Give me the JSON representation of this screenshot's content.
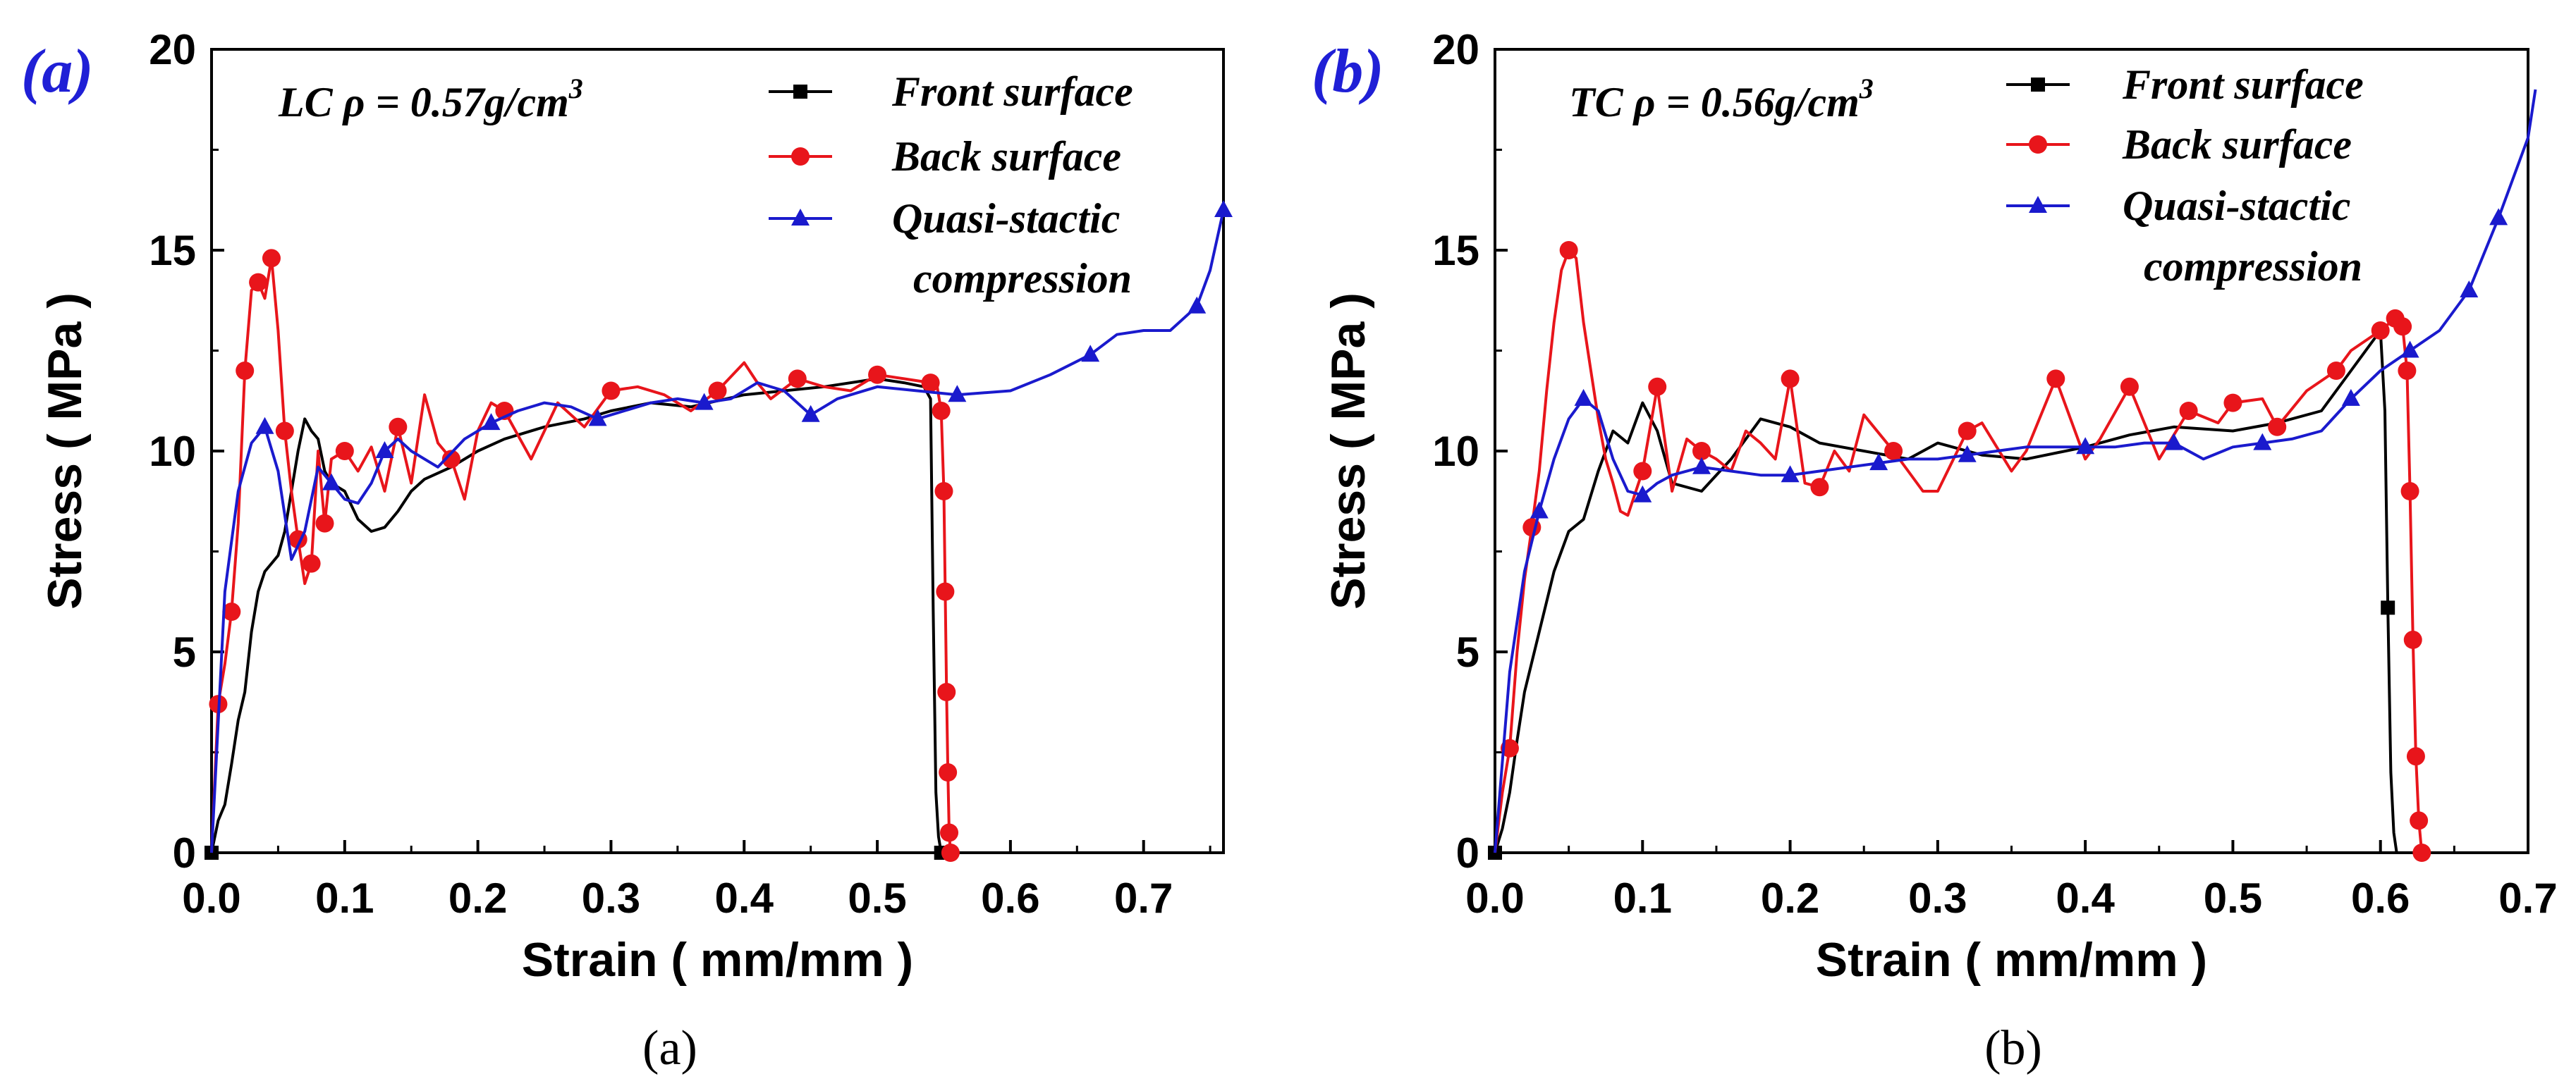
{
  "chart_data": [
    {
      "type": "line",
      "panel_letter": "(a)",
      "caption": "(a)",
      "annotation": "LC  ρ = 0.57g/cm",
      "annotation_sup": "3",
      "xlabel": "Strain ( mm/mm )",
      "ylabel": "Stress ( MPa )",
      "xlim": [
        0,
        0.76
      ],
      "ylim": [
        0,
        20
      ],
      "xticks": [
        0.0,
        0.1,
        0.2,
        0.3,
        0.4,
        0.5,
        0.6,
        0.7
      ],
      "xtick_labels": [
        "0.0",
        "0.1",
        "0.2",
        "0.3",
        "0.4",
        "0.5",
        "0.6",
        "0.7"
      ],
      "yticks": [
        0,
        5,
        10,
        15,
        20
      ],
      "ytick_labels": [
        "0",
        "5",
        "10",
        "15",
        "20"
      ],
      "legend_position": "top-right",
      "series": [
        {
          "name": "Front surface",
          "color": "#000000",
          "marker": "square",
          "x": [
            0.0,
            0.005,
            0.01,
            0.015,
            0.02,
            0.025,
            0.03,
            0.035,
            0.04,
            0.045,
            0.05,
            0.055,
            0.06,
            0.065,
            0.07,
            0.075,
            0.08,
            0.085,
            0.09,
            0.1,
            0.11,
            0.12,
            0.13,
            0.14,
            0.15,
            0.16,
            0.18,
            0.2,
            0.22,
            0.25,
            0.28,
            0.3,
            0.33,
            0.36,
            0.4,
            0.43,
            0.46,
            0.5,
            0.52,
            0.535,
            0.54,
            0.542,
            0.544,
            0.546,
            0.548
          ],
          "y": [
            0.0,
            0.8,
            1.2,
            2.2,
            3.3,
            4.0,
            5.5,
            6.5,
            7.0,
            7.2,
            7.4,
            8.0,
            9.0,
            10.0,
            10.8,
            10.5,
            10.3,
            9.5,
            9.2,
            9.0,
            8.3,
            8.0,
            8.1,
            8.5,
            9.0,
            9.3,
            9.6,
            10.0,
            10.3,
            10.6,
            10.8,
            11.0,
            11.2,
            11.1,
            11.4,
            11.5,
            11.6,
            11.8,
            11.7,
            11.6,
            11.3,
            6.0,
            1.5,
            0.4,
            0.0
          ],
          "marker_indices": [
            0,
            44
          ]
        },
        {
          "name": "Back surface",
          "color": "#e8151b",
          "marker": "circle",
          "x": [
            0.0,
            0.005,
            0.01,
            0.015,
            0.02,
            0.025,
            0.03,
            0.035,
            0.04,
            0.045,
            0.05,
            0.055,
            0.06,
            0.065,
            0.07,
            0.075,
            0.08,
            0.085,
            0.09,
            0.1,
            0.11,
            0.12,
            0.13,
            0.14,
            0.15,
            0.16,
            0.17,
            0.18,
            0.19,
            0.2,
            0.21,
            0.22,
            0.24,
            0.26,
            0.28,
            0.3,
            0.32,
            0.34,
            0.36,
            0.38,
            0.4,
            0.41,
            0.42,
            0.44,
            0.46,
            0.48,
            0.5,
            0.52,
            0.54,
            0.545,
            0.548,
            0.55,
            0.551,
            0.552,
            0.553,
            0.554,
            0.555
          ],
          "y": [
            0.0,
            3.7,
            4.7,
            6.0,
            8.2,
            12.0,
            14.0,
            14.2,
            13.8,
            14.8,
            13.0,
            10.5,
            9.0,
            7.8,
            6.7,
            7.2,
            10.0,
            8.2,
            9.8,
            10.0,
            9.5,
            10.1,
            9.0,
            10.6,
            9.2,
            11.4,
            10.2,
            9.8,
            8.8,
            10.5,
            11.2,
            11.0,
            9.8,
            11.2,
            10.6,
            11.5,
            11.6,
            11.4,
            11.0,
            11.5,
            12.2,
            11.7,
            11.3,
            11.8,
            11.6,
            11.5,
            11.9,
            11.8,
            11.7,
            11.6,
            11.0,
            9.0,
            6.5,
            4.0,
            2.0,
            0.5,
            0.0
          ],
          "marker_indices": [
            1,
            3,
            5,
            7,
            9,
            11,
            13,
            15,
            17,
            19,
            23,
            27,
            31,
            35,
            39,
            43,
            46,
            48,
            50,
            51,
            52,
            53,
            54,
            55,
            56
          ]
        },
        {
          "name": "Quasi-stactic compression",
          "color": "#1a1acd",
          "marker": "triangle",
          "x": [
            0.0,
            0.01,
            0.02,
            0.03,
            0.04,
            0.05,
            0.06,
            0.07,
            0.08,
            0.09,
            0.1,
            0.11,
            0.12,
            0.13,
            0.14,
            0.15,
            0.17,
            0.19,
            0.21,
            0.23,
            0.25,
            0.27,
            0.29,
            0.31,
            0.33,
            0.35,
            0.37,
            0.39,
            0.41,
            0.43,
            0.45,
            0.47,
            0.5,
            0.53,
            0.56,
            0.6,
            0.63,
            0.66,
            0.68,
            0.7,
            0.72,
            0.74,
            0.75,
            0.76
          ],
          "y": [
            0.0,
            6.5,
            9.0,
            10.2,
            10.6,
            9.5,
            7.3,
            8.0,
            9.6,
            9.2,
            8.8,
            8.7,
            9.2,
            10.0,
            10.3,
            10.0,
            9.6,
            10.3,
            10.7,
            11.0,
            11.2,
            11.1,
            10.8,
            11.0,
            11.2,
            11.3,
            11.2,
            11.3,
            11.7,
            11.5,
            10.9,
            11.3,
            11.6,
            11.5,
            11.4,
            11.5,
            11.9,
            12.4,
            12.9,
            13.0,
            13.0,
            13.6,
            14.5,
            16.0
          ],
          "marker_indices": [
            4,
            9,
            13,
            18,
            22,
            26,
            30,
            34,
            37,
            41,
            43
          ]
        }
      ]
    },
    {
      "type": "line",
      "panel_letter": "(b)",
      "caption": "(b)",
      "annotation": "TC  ρ = 0.56g/cm",
      "annotation_sup": "3",
      "xlabel": "Strain ( mm/mm )",
      "ylabel": "Stress ( MPa )",
      "xlim": [
        0,
        0.7
      ],
      "ylim": [
        0,
        20
      ],
      "xticks": [
        0.0,
        0.1,
        0.2,
        0.3,
        0.4,
        0.5,
        0.6,
        0.7
      ],
      "xtick_labels": [
        "0.0",
        "0.1",
        "0.2",
        "0.3",
        "0.4",
        "0.5",
        "0.6",
        "0.7"
      ],
      "yticks": [
        0,
        5,
        10,
        15,
        20
      ],
      "ytick_labels": [
        "0",
        "5",
        "10",
        "15",
        "20"
      ],
      "legend_position": "top-right",
      "series": [
        {
          "name": "Front surface",
          "color": "#000000",
          "marker": "square",
          "x": [
            0.0,
            0.005,
            0.01,
            0.015,
            0.02,
            0.03,
            0.04,
            0.05,
            0.06,
            0.07,
            0.08,
            0.09,
            0.1,
            0.11,
            0.12,
            0.14,
            0.16,
            0.18,
            0.2,
            0.22,
            0.25,
            0.28,
            0.3,
            0.33,
            0.36,
            0.4,
            0.43,
            0.46,
            0.5,
            0.53,
            0.56,
            0.58,
            0.6,
            0.603,
            0.605,
            0.607,
            0.609,
            0.611
          ],
          "y": [
            0.0,
            0.6,
            1.5,
            2.8,
            4.0,
            5.5,
            7.0,
            8.0,
            8.3,
            9.5,
            10.5,
            10.2,
            11.2,
            10.5,
            9.2,
            9.0,
            9.8,
            10.8,
            10.6,
            10.2,
            10.0,
            9.8,
            10.2,
            9.9,
            9.8,
            10.1,
            10.4,
            10.6,
            10.5,
            10.7,
            11.0,
            12.0,
            13.0,
            11.0,
            6.1,
            2.0,
            0.5,
            0.0
          ],
          "marker_indices": [
            0,
            34
          ]
        },
        {
          "name": "Back surface",
          "color": "#e8151b",
          "marker": "circle",
          "x": [
            0.0,
            0.005,
            0.01,
            0.015,
            0.02,
            0.025,
            0.03,
            0.035,
            0.04,
            0.045,
            0.05,
            0.055,
            0.06,
            0.065,
            0.07,
            0.075,
            0.08,
            0.085,
            0.09,
            0.1,
            0.11,
            0.12,
            0.13,
            0.14,
            0.15,
            0.16,
            0.17,
            0.18,
            0.19,
            0.2,
            0.21,
            0.22,
            0.23,
            0.24,
            0.25,
            0.27,
            0.29,
            0.3,
            0.32,
            0.33,
            0.35,
            0.36,
            0.38,
            0.4,
            0.41,
            0.43,
            0.45,
            0.47,
            0.49,
            0.5,
            0.52,
            0.53,
            0.55,
            0.57,
            0.58,
            0.6,
            0.61,
            0.615,
            0.618,
            0.62,
            0.622,
            0.624,
            0.626,
            0.628
          ],
          "y": [
            0.0,
            1.5,
            2.6,
            5.0,
            6.8,
            8.1,
            9.5,
            11.5,
            13.2,
            14.5,
            15.0,
            14.8,
            13.2,
            12.0,
            10.8,
            9.8,
            9.2,
            8.5,
            8.4,
            9.5,
            11.6,
            9.0,
            10.3,
            10.0,
            9.8,
            9.5,
            10.5,
            10.2,
            9.8,
            11.8,
            9.2,
            9.1,
            10.0,
            9.5,
            10.9,
            10.0,
            9.0,
            9.0,
            10.5,
            10.7,
            9.5,
            10.0,
            11.8,
            9.8,
            10.3,
            11.6,
            9.8,
            11.0,
            10.7,
            11.2,
            11.3,
            10.6,
            11.5,
            12.0,
            12.5,
            13.0,
            13.3,
            13.1,
            12.0,
            9.0,
            5.3,
            2.4,
            0.8,
            0.0
          ],
          "marker_indices": [
            2,
            5,
            10,
            19,
            20,
            23,
            29,
            31,
            35,
            38,
            42,
            45,
            47,
            49,
            51,
            53,
            55,
            56,
            57,
            58,
            59,
            60,
            61,
            62,
            63
          ]
        },
        {
          "name": "Quasi-stactic compression",
          "color": "#1a1acd",
          "marker": "triangle",
          "x": [
            0.0,
            0.01,
            0.02,
            0.03,
            0.04,
            0.05,
            0.06,
            0.07,
            0.08,
            0.09,
            0.1,
            0.11,
            0.12,
            0.14,
            0.16,
            0.18,
            0.2,
            0.22,
            0.24,
            0.26,
            0.28,
            0.3,
            0.32,
            0.34,
            0.36,
            0.38,
            0.4,
            0.42,
            0.44,
            0.46,
            0.48,
            0.5,
            0.52,
            0.54,
            0.56,
            0.58,
            0.6,
            0.62,
            0.64,
            0.66,
            0.68,
            0.7,
            0.705
          ],
          "y": [
            0.0,
            4.5,
            7.0,
            8.5,
            9.8,
            10.8,
            11.3,
            11.0,
            9.8,
            9.0,
            8.9,
            9.2,
            9.4,
            9.6,
            9.5,
            9.4,
            9.4,
            9.5,
            9.6,
            9.7,
            9.8,
            9.8,
            9.9,
            10.0,
            10.1,
            10.1,
            10.1,
            10.1,
            10.2,
            10.2,
            9.8,
            10.1,
            10.2,
            10.3,
            10.5,
            11.3,
            12.0,
            12.5,
            13.0,
            14.0,
            15.8,
            17.8,
            19.0
          ],
          "marker_indices": [
            3,
            6,
            10,
            13,
            16,
            19,
            22,
            26,
            29,
            32,
            35,
            37,
            39,
            40
          ]
        }
      ]
    }
  ]
}
